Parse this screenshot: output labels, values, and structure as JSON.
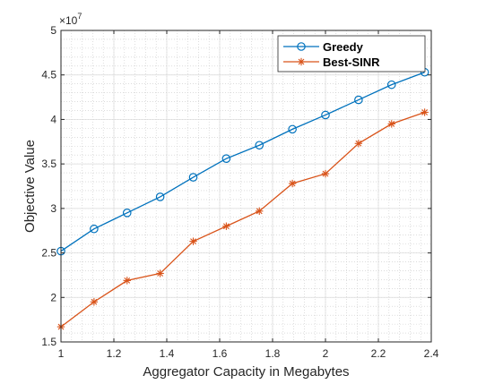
{
  "chart_data": {
    "type": "line",
    "title": "",
    "xlabel": "Aggregator Capacity in Megabytes",
    "ylabel": "Objective Value",
    "y_exponent_label": "×10",
    "y_exponent_power": "7",
    "xlim": [
      1,
      2.4
    ],
    "ylim": [
      1.5,
      5
    ],
    "x_ticks": [
      1,
      1.2,
      1.4,
      1.6,
      1.8,
      2,
      2.2,
      2.4
    ],
    "x_tick_labels": [
      "1",
      "1.2",
      "1.4",
      "1.6",
      "1.8",
      "2",
      "2.2",
      "2.4"
    ],
    "y_ticks": [
      1.5,
      2,
      2.5,
      3,
      3.5,
      4,
      4.5,
      5
    ],
    "y_tick_labels": [
      "1.5",
      "2",
      "2.5",
      "3",
      "3.5",
      "4",
      "4.5",
      "5"
    ],
    "grid": true,
    "minor_grid": true,
    "legend_position": "top-right",
    "x": [
      1,
      1.125,
      1.25,
      1.375,
      1.5,
      1.625,
      1.75,
      1.875,
      2,
      2.125,
      2.25,
      2.375
    ],
    "series": [
      {
        "name": "Greedy",
        "color": "#0072BD",
        "marker": "circle",
        "values": [
          2.52,
          2.77,
          2.95,
          3.13,
          3.35,
          3.56,
          3.71,
          3.89,
          4.05,
          4.22,
          4.39,
          4.53
        ]
      },
      {
        "name": "Best-SINR",
        "color": "#D95319",
        "marker": "asterisk",
        "values": [
          1.67,
          1.95,
          2.19,
          2.27,
          2.63,
          2.8,
          2.97,
          3.28,
          3.39,
          3.73,
          3.95,
          4.08
        ]
      }
    ]
  }
}
